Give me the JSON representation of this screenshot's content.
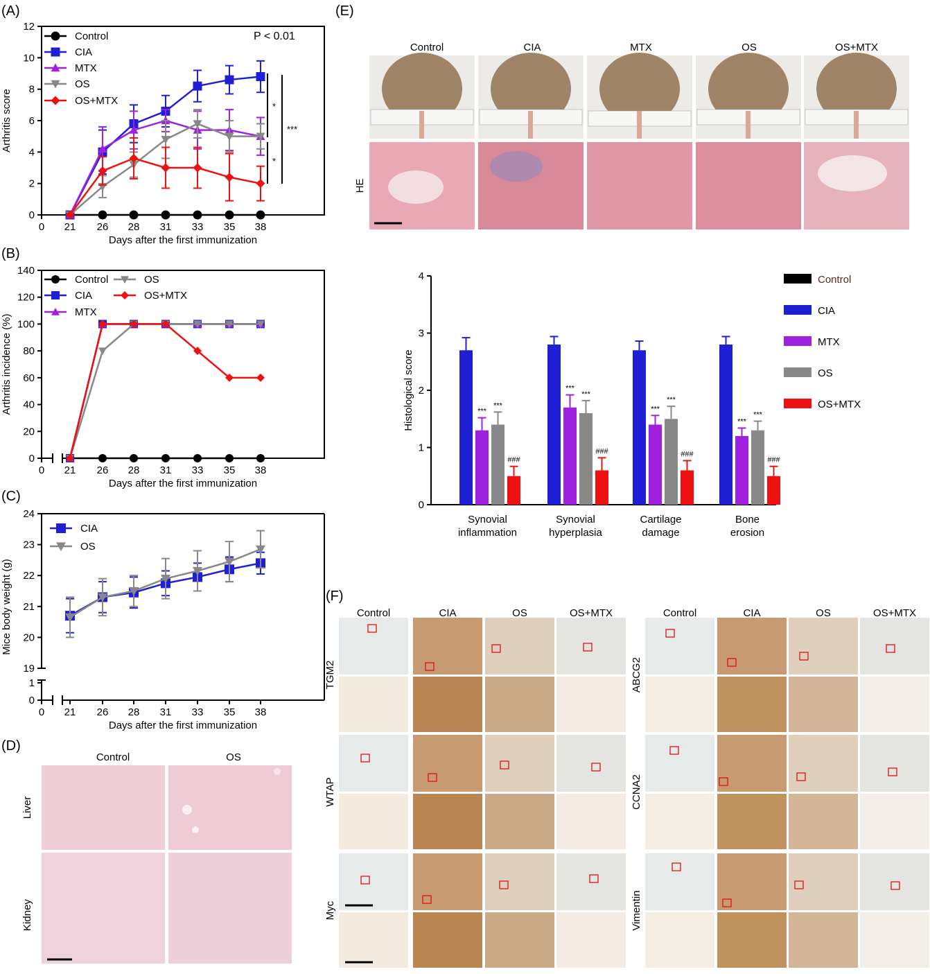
{
  "panels": {
    "A": "(A)",
    "B": "(B)",
    "C": "(C)",
    "D": "(D)",
    "E": "(E)",
    "F": "(F)"
  },
  "colors": {
    "Control": "#000000",
    "CIA": "#1f1fd6",
    "MTX": "#a020e0",
    "OS": "#888888",
    "OS+MTX": "#ee1111"
  },
  "chart_data": [
    {
      "id": "A",
      "type": "line",
      "xlabel": "Days after the first immunization",
      "ylabel": "Arthritis score",
      "x": [
        21,
        26,
        28,
        31,
        33,
        35,
        38
      ],
      "xticks": [
        0,
        21,
        26,
        28,
        31,
        33,
        35,
        38
      ],
      "ylim": [
        0,
        12
      ],
      "yticks": [
        0,
        2,
        4,
        6,
        8,
        10,
        12
      ],
      "annotation": "P < 0.01",
      "sig_labels": [
        "*",
        "***",
        "*"
      ],
      "legend_position": "top-left",
      "series": [
        {
          "name": "Control",
          "marker": "circle",
          "values": [
            0,
            0,
            0,
            0,
            0,
            0,
            0
          ],
          "err": [
            0,
            0,
            0,
            0,
            0,
            0,
            0
          ]
        },
        {
          "name": "CIA",
          "marker": "square",
          "values": [
            0,
            4.0,
            5.8,
            6.6,
            8.2,
            8.6,
            8.8
          ],
          "err": [
            0,
            1.4,
            1.2,
            1.0,
            1.0,
            0.9,
            1.0
          ]
        },
        {
          "name": "MTX",
          "marker": "triangle-up",
          "values": [
            0,
            4.2,
            5.4,
            6.0,
            5.4,
            5.4,
            5.0
          ],
          "err": [
            0,
            1.4,
            1.2,
            0.7,
            1.2,
            1.3,
            1.2
          ]
        },
        {
          "name": "OS",
          "marker": "triangle-down",
          "values": [
            0,
            1.8,
            3.2,
            4.8,
            5.8,
            5.0,
            5.0
          ],
          "err": [
            0,
            0.7,
            0.8,
            1.2,
            0.9,
            1.0,
            0.8
          ]
        },
        {
          "name": "OS+MTX",
          "marker": "diamond",
          "values": [
            0,
            2.8,
            3.6,
            3.0,
            3.0,
            2.4,
            2.0
          ],
          "err": [
            0,
            0.9,
            1.3,
            1.3,
            1.3,
            1.5,
            1.1
          ]
        }
      ]
    },
    {
      "id": "B",
      "type": "line",
      "xlabel": "Days after the first immunization",
      "ylabel": "Arthritis incidence (%)",
      "x": [
        21,
        26,
        28,
        31,
        33,
        35,
        38
      ],
      "xticks": [
        0,
        21,
        26,
        28,
        31,
        33,
        35,
        38
      ],
      "ylim": [
        0,
        140
      ],
      "yticks": [
        0,
        20,
        40,
        60,
        80,
        100,
        120,
        140
      ],
      "legend_position": "top-left",
      "series": [
        {
          "name": "Control",
          "marker": "circle",
          "values": [
            0,
            0,
            0,
            0,
            0,
            0,
            0
          ]
        },
        {
          "name": "CIA",
          "marker": "square",
          "values": [
            0,
            100,
            100,
            100,
            100,
            100,
            100
          ]
        },
        {
          "name": "MTX",
          "marker": "triangle-up",
          "values": [
            0,
            100,
            100,
            100,
            100,
            100,
            100
          ]
        },
        {
          "name": "OS",
          "marker": "triangle-down",
          "values": [
            0,
            80,
            100,
            100,
            100,
            100,
            100
          ]
        },
        {
          "name": "OS+MTX",
          "marker": "diamond",
          "values": [
            0,
            100,
            100,
            100,
            80,
            60,
            60
          ]
        }
      ]
    },
    {
      "id": "C",
      "type": "line",
      "xlabel": "Days after the first immunization",
      "ylabel": "Mice body weight (g)",
      "x": [
        21,
        26,
        28,
        31,
        33,
        35,
        38
      ],
      "xticks": [
        0,
        21,
        26,
        28,
        31,
        33,
        35,
        38
      ],
      "ylim": [
        19,
        24
      ],
      "yticks": [
        19,
        20,
        21,
        22,
        23,
        24
      ],
      "ybreak_ticks": [
        0,
        1
      ],
      "legend_position": "top-left",
      "series": [
        {
          "name": "CIA",
          "marker": "square",
          "values": [
            20.7,
            21.3,
            21.45,
            21.75,
            21.95,
            22.2,
            22.4
          ],
          "err": [
            0.55,
            0.5,
            0.5,
            0.4,
            0.45,
            0.4,
            0.35
          ]
        },
        {
          "name": "OS",
          "marker": "triangle-down",
          "values": [
            20.65,
            21.3,
            21.5,
            21.9,
            22.15,
            22.45,
            22.85
          ],
          "err": [
            0.65,
            0.6,
            0.5,
            0.65,
            0.65,
            0.65,
            0.6
          ]
        }
      ]
    },
    {
      "id": "E2",
      "type": "bar",
      "ylabel": "Histological score",
      "ylim": [
        0,
        4
      ],
      "yticks": [
        0,
        1,
        2,
        3,
        4
      ],
      "categories": [
        [
          "Synovial",
          "inflammation"
        ],
        [
          "Synovial",
          "hyperplasia"
        ],
        [
          "Cartilage",
          "damage"
        ],
        [
          "Bone",
          "erosion"
        ]
      ],
      "legend_position": "right",
      "series": [
        {
          "name": "Control",
          "values": [
            0,
            0,
            0,
            0
          ],
          "err": [
            0,
            0,
            0,
            0
          ]
        },
        {
          "name": "CIA",
          "values": [
            2.7,
            2.8,
            2.7,
            2.8
          ],
          "err": [
            0.22,
            0.14,
            0.16,
            0.14
          ]
        },
        {
          "name": "MTX",
          "values": [
            1.3,
            1.7,
            1.4,
            1.2
          ],
          "err": [
            0.22,
            0.22,
            0.16,
            0.14
          ],
          "label": "***"
        },
        {
          "name": "OS",
          "values": [
            1.4,
            1.6,
            1.5,
            1.3
          ],
          "err": [
            0.22,
            0.22,
            0.22,
            0.16
          ],
          "label": "***"
        },
        {
          "name": "OS+MTX",
          "values": [
            0.5,
            0.6,
            0.6,
            0.5
          ],
          "err": [
            0.17,
            0.22,
            0.17,
            0.17
          ],
          "label": "###"
        }
      ]
    }
  ],
  "panelD": {
    "columns": [
      "Control",
      "OS"
    ],
    "rows": [
      "Liver",
      "Kidney"
    ]
  },
  "panelE": {
    "columns": [
      "Control",
      "CIA",
      "MTX",
      "OS",
      "OS+MTX"
    ],
    "row_label": "HE"
  },
  "panelF": {
    "columns_left": [
      "Control",
      "CIA",
      "OS",
      "OS+MTX"
    ],
    "columns_right": [
      "Control",
      "CIA",
      "OS",
      "OS+MTX"
    ],
    "rows_left": [
      "TGM2",
      "WTAP",
      "Myc"
    ],
    "rows_right": [
      "ABCG2",
      "CCNA2",
      "Vimentin"
    ]
  }
}
